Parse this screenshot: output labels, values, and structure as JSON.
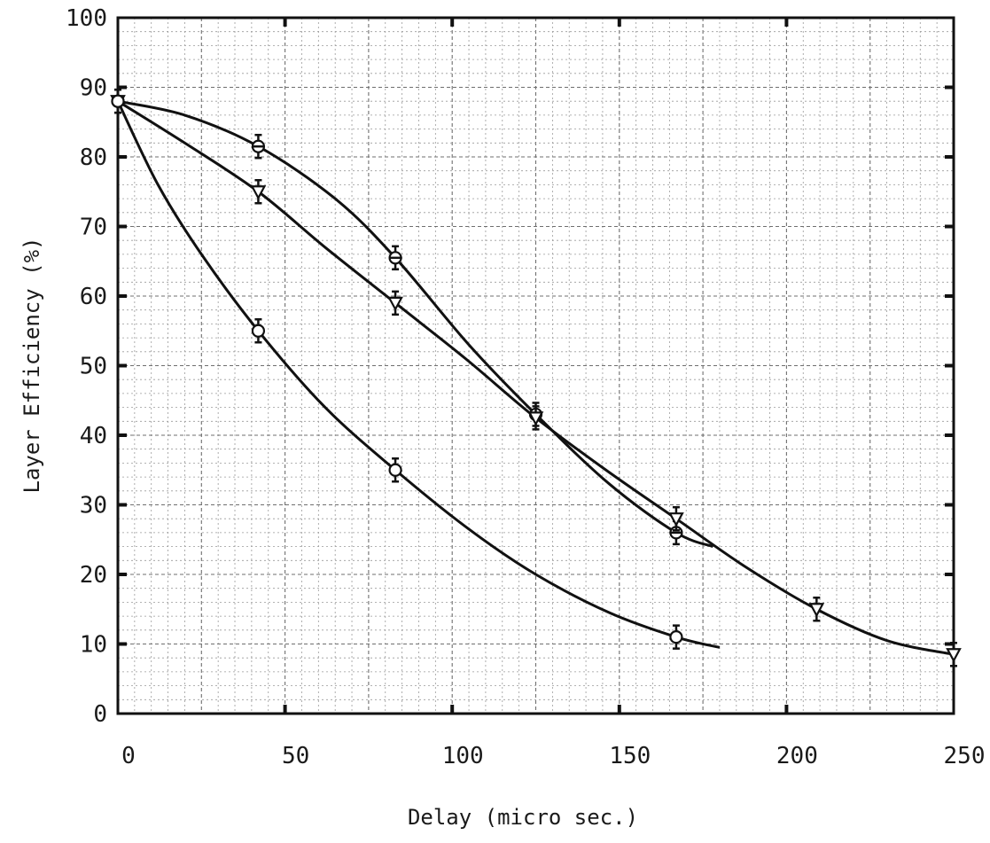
{
  "chart_data": {
    "type": "line",
    "title": "",
    "xlabel": "Delay (micro sec.)",
    "ylabel": "Layer Efficiency (%)",
    "xlim": [
      0,
      250
    ],
    "ylim": [
      0,
      100
    ],
    "x_ticks": [
      0,
      50,
      100,
      150,
      200,
      250
    ],
    "y_ticks": [
      0,
      10,
      20,
      30,
      40,
      50,
      60,
      70,
      80,
      90,
      100
    ],
    "x_tick_labels": [
      "0",
      "50",
      "100",
      "150",
      "200",
      "250"
    ],
    "y_tick_labels": [
      "0",
      "10",
      "20",
      "30",
      "40",
      "50",
      "60",
      "70",
      "80",
      "90",
      "100"
    ],
    "grid": true,
    "legend": "none",
    "series": [
      {
        "marker": "cross-circle",
        "points": [
          [
            0,
            88
          ],
          [
            42,
            81.5
          ],
          [
            83,
            65.5
          ],
          [
            125,
            43
          ],
          [
            167,
            26
          ]
        ],
        "curve": [
          [
            0,
            88
          ],
          [
            20,
            86
          ],
          [
            42,
            81.5
          ],
          [
            65,
            74
          ],
          [
            83,
            65.5
          ],
          [
            105,
            53
          ],
          [
            125,
            43
          ],
          [
            147,
            33
          ],
          [
            167,
            26
          ],
          [
            178,
            24
          ]
        ]
      },
      {
        "marker": "triangle-down",
        "points": [
          [
            0,
            88
          ],
          [
            42,
            75
          ],
          [
            83,
            59
          ],
          [
            125,
            42.5
          ],
          [
            167,
            28
          ],
          [
            209,
            15
          ],
          [
            250,
            8.5
          ]
        ],
        "curve": [
          [
            0,
            88
          ],
          [
            20,
            82
          ],
          [
            42,
            75
          ],
          [
            62,
            67
          ],
          [
            83,
            59
          ],
          [
            104,
            51
          ],
          [
            125,
            42.5
          ],
          [
            146,
            35
          ],
          [
            167,
            28
          ],
          [
            188,
            21
          ],
          [
            209,
            15
          ],
          [
            230,
            10.5
          ],
          [
            250,
            8.5
          ]
        ]
      },
      {
        "marker": "circle",
        "points": [
          [
            0,
            88
          ],
          [
            42,
            55
          ],
          [
            83,
            35
          ],
          [
            167,
            11
          ]
        ],
        "curve": [
          [
            0,
            88
          ],
          [
            12,
            76
          ],
          [
            25,
            66
          ],
          [
            42,
            55
          ],
          [
            62,
            44
          ],
          [
            83,
            35
          ],
          [
            105,
            26.5
          ],
          [
            125,
            20
          ],
          [
            147,
            14.5
          ],
          [
            167,
            11
          ],
          [
            180,
            9.5
          ]
        ]
      }
    ]
  }
}
